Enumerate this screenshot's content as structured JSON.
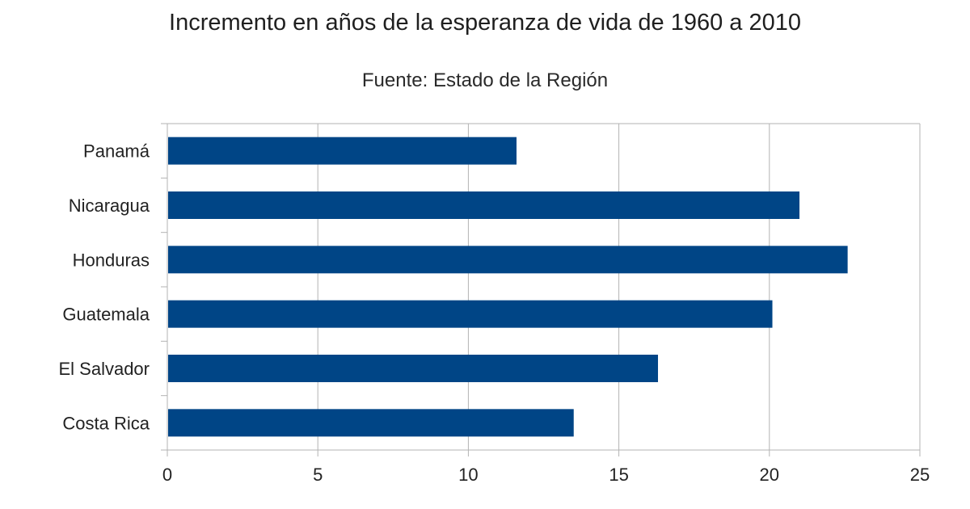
{
  "chart_data": {
    "type": "bar",
    "orientation": "horizontal",
    "title": "Incremento en años de la esperanza de vida de 1960 a 2010",
    "subtitle": "Fuente: Estado de la Región",
    "xlabel": "",
    "ylabel": "",
    "categories": [
      "Panamá",
      "Nicaragua",
      "Honduras",
      "Guatemala",
      "El Salvador",
      "Costa Rica"
    ],
    "values": [
      11.6,
      21.0,
      22.6,
      20.1,
      16.3,
      13.5
    ],
    "xlim": [
      0,
      25
    ],
    "xticks": [
      "0",
      "5",
      "10",
      "15",
      "20",
      "25"
    ],
    "grid": true,
    "legend": "none",
    "bar_color": "#004586",
    "grid_color": "#b3b3b3"
  }
}
